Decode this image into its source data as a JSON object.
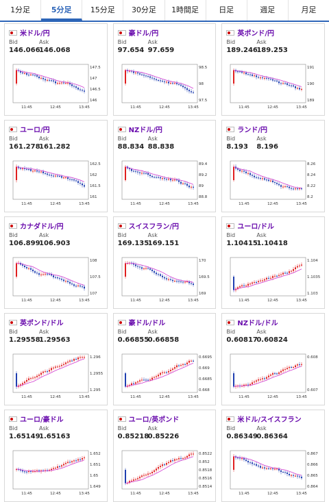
{
  "tabs": [
    "1分足",
    "5分足",
    "15分足",
    "30分足",
    "1時間足",
    "日足",
    "週足",
    "月足"
  ],
  "active_tab_index": 1,
  "bid_label": "Bid",
  "ask_label": "Ask",
  "time_labels": [
    "11:45",
    "12:45",
    "13:45"
  ],
  "cards": [
    {
      "pair": "米ドル/円",
      "bid": "146.066",
      "ask": "146.068",
      "y_ticks": [
        "147.5",
        "147",
        "146.5",
        "146"
      ],
      "trend": "down"
    },
    {
      "pair": "豪ドル/円",
      "bid": "97.654",
      "ask": "97.659",
      "y_ticks": [
        "98.5",
        "98",
        "97.5"
      ],
      "trend": "down"
    },
    {
      "pair": "英ポンド/円",
      "bid": "189.246",
      "ask": "189.253",
      "y_ticks": [
        "191",
        "190",
        "189"
      ],
      "trend": "down"
    },
    {
      "pair": "ユーロ/円",
      "bid": "161.278",
      "ask": "161.282",
      "y_ticks": [
        "162.5",
        "162",
        "161.5",
        "161"
      ],
      "trend": "down"
    },
    {
      "pair": "NZドル/円",
      "bid": "88.834",
      "ask": "88.838",
      "y_ticks": [
        "89.4",
        "89.2",
        "89",
        "88.8"
      ],
      "trend": "down"
    },
    {
      "pair": "ランド/円",
      "bid": "8.193",
      "ask": "8.196",
      "y_ticks": [
        "8.26",
        "8.24",
        "8.22",
        "8.2"
      ],
      "trend": "down"
    },
    {
      "pair": "カナダドル/円",
      "bid": "106.899",
      "ask": "106.903",
      "y_ticks": [
        "108",
        "107.5",
        "107"
      ],
      "trend": "down"
    },
    {
      "pair": "スイスフラン/円",
      "bid": "169.135",
      "ask": "169.151",
      "y_ticks": [
        "170",
        "169.5",
        "169"
      ],
      "trend": "down"
    },
    {
      "pair": "ユーロ/ドル",
      "bid": "1.10415",
      "ask": "1.10418",
      "y_ticks": [
        "1.104",
        "1.1035",
        "1.103"
      ],
      "trend": "up"
    },
    {
      "pair": "英ポンド/ドル",
      "bid": "1.29558",
      "ask": "1.29563",
      "y_ticks": [
        "1.296",
        "1.2955",
        "1.295"
      ],
      "trend": "up"
    },
    {
      "pair": "豪ドル/ドル",
      "bid": "0.66855",
      "ask": "0.66858",
      "y_ticks": [
        "0.6695",
        "0.669",
        "0.6685",
        "0.668"
      ],
      "trend": "up"
    },
    {
      "pair": "NZドル/ドル",
      "bid": "0.60817",
      "ask": "0.60824",
      "y_ticks": [
        "0.608",
        "0.607"
      ],
      "trend": "up"
    },
    {
      "pair": "ユーロ/豪ドル",
      "bid": "1.65149",
      "ask": "1.65163",
      "y_ticks": [
        "1.652",
        "1.651",
        "1.65",
        "1.649"
      ],
      "trend": "mixed"
    },
    {
      "pair": "ユーロ/英ポンド",
      "bid": "0.85218",
      "ask": "0.85226",
      "y_ticks": [
        "0.8522",
        "0.852",
        "0.8518",
        "0.8516",
        "0.8514"
      ],
      "trend": "up"
    },
    {
      "pair": "米ドル/スイスフラン",
      "bid": "0.86349",
      "ask": "0.86364",
      "y_ticks": [
        "0.867",
        "0.866",
        "0.865",
        "0.864"
      ],
      "trend": "down"
    }
  ]
}
